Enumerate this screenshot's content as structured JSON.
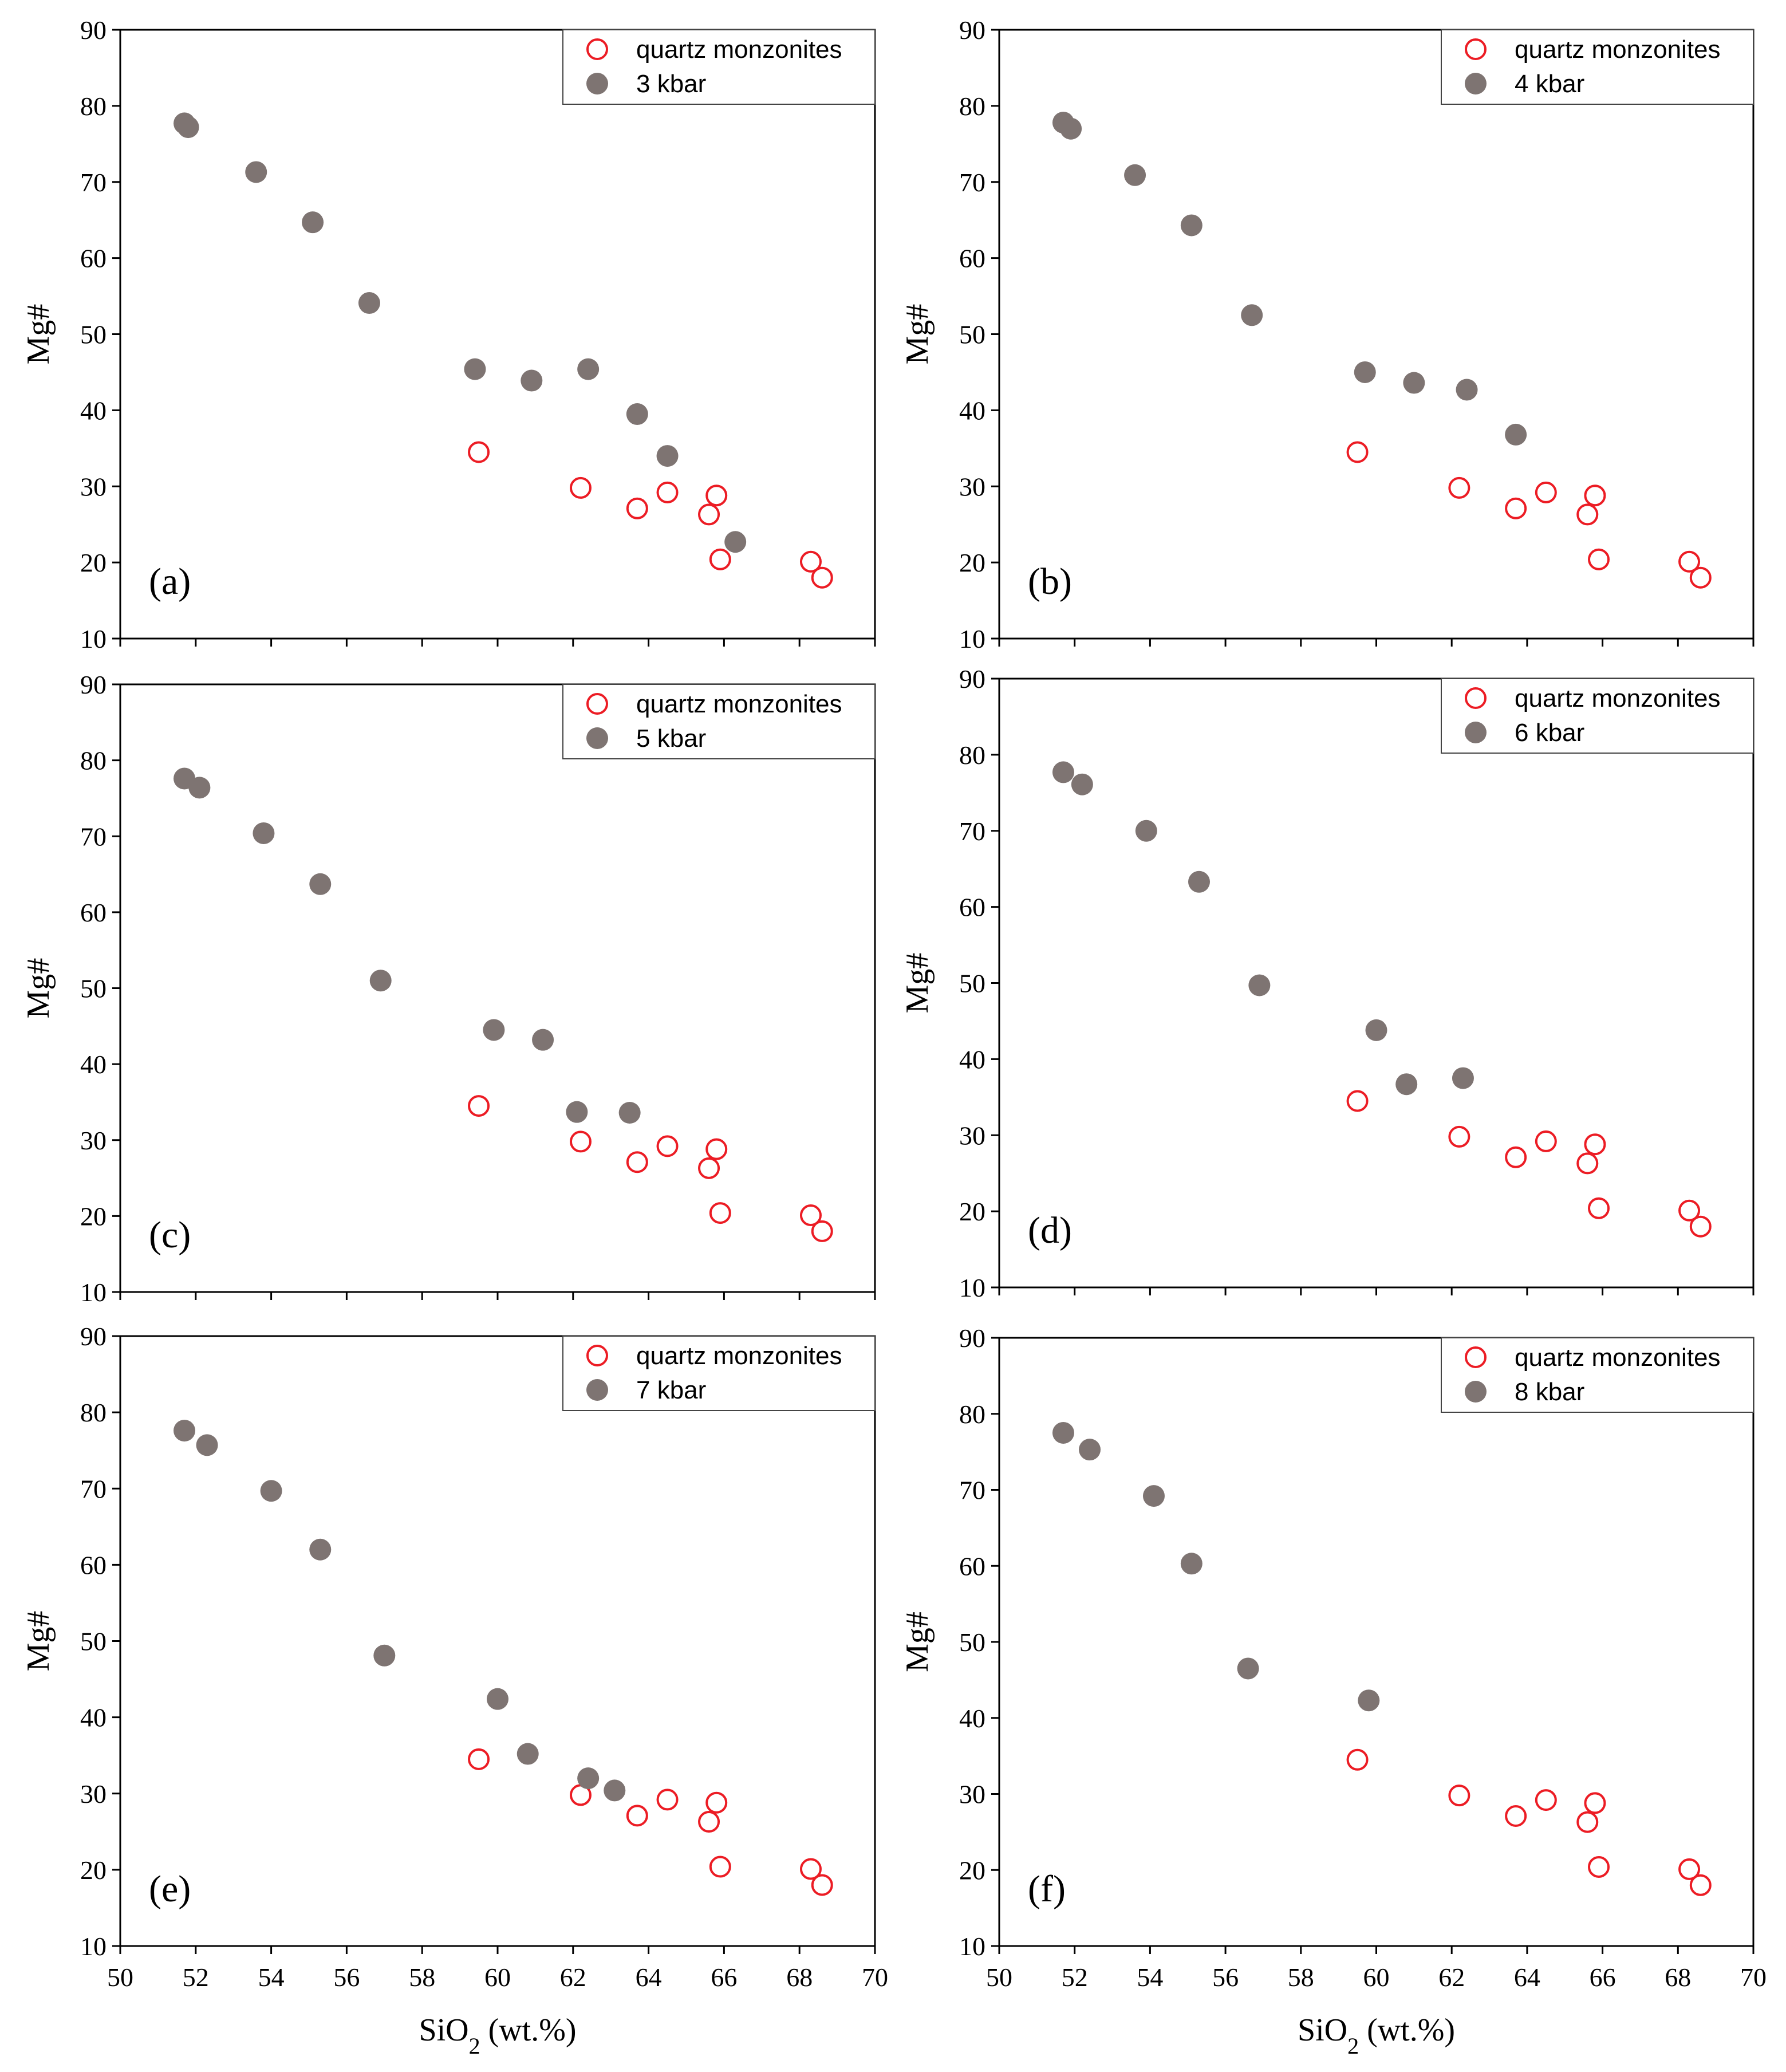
{
  "colors": {
    "quartz": "#ec1c24",
    "experiment": "#7e7472",
    "axis": "#000000"
  },
  "chart_data": [
    {
      "type": "scatter",
      "panel": "(a)",
      "xlabel": "SiO2 (wt.%)",
      "ylabel": "Mg#",
      "xlim": [
        50,
        70
      ],
      "ylim": [
        10,
        90
      ],
      "xtick_labels_shown": false,
      "series": [
        {
          "name": "quartz monzonites",
          "marker": "open-circle",
          "points": [
            [
              59.5,
              34.5
            ],
            [
              62.2,
              29.8
            ],
            [
              63.7,
              27.1
            ],
            [
              64.5,
              29.2
            ],
            [
              65.6,
              26.3
            ],
            [
              65.8,
              28.8
            ],
            [
              65.9,
              20.4
            ],
            [
              68.3,
              20.1
            ],
            [
              68.6,
              18.0
            ]
          ]
        },
        {
          "name": "3 kbar",
          "marker": "filled-circle",
          "points": [
            [
              51.7,
              77.7
            ],
            [
              51.8,
              77.2
            ],
            [
              53.6,
              71.3
            ],
            [
              55.1,
              64.7
            ],
            [
              56.6,
              54.1
            ],
            [
              59.4,
              45.4
            ],
            [
              60.9,
              43.9
            ],
            [
              62.4,
              45.4
            ],
            [
              63.7,
              39.5
            ],
            [
              64.5,
              34.0
            ],
            [
              66.3,
              22.7
            ]
          ]
        }
      ]
    },
    {
      "type": "scatter",
      "panel": "(b)",
      "xlabel": "SiO2 (wt.%)",
      "ylabel": "Mg#",
      "xlim": [
        50,
        70
      ],
      "ylim": [
        10,
        90
      ],
      "xtick_labels_shown": false,
      "series": [
        {
          "name": "quartz monzonites",
          "marker": "open-circle",
          "points": [
            [
              59.5,
              34.5
            ],
            [
              62.2,
              29.8
            ],
            [
              63.7,
              27.1
            ],
            [
              64.5,
              29.2
            ],
            [
              65.6,
              26.3
            ],
            [
              65.8,
              28.8
            ],
            [
              65.9,
              20.4
            ],
            [
              68.3,
              20.1
            ],
            [
              68.6,
              18.0
            ]
          ]
        },
        {
          "name": "4 kbar",
          "marker": "filled-circle",
          "points": [
            [
              51.7,
              77.8
            ],
            [
              51.9,
              77.0
            ],
            [
              53.6,
              70.9
            ],
            [
              55.1,
              64.3
            ],
            [
              56.7,
              52.5
            ],
            [
              59.7,
              45.0
            ],
            [
              61.0,
              43.6
            ],
            [
              62.4,
              42.7
            ],
            [
              63.7,
              36.8
            ]
          ]
        }
      ]
    },
    {
      "type": "scatter",
      "panel": "(c)",
      "xlabel": "SiO2 (wt.%)",
      "ylabel": "Mg#",
      "xlim": [
        50,
        70
      ],
      "ylim": [
        10,
        90
      ],
      "xtick_labels_shown": false,
      "series": [
        {
          "name": "quartz monzonites",
          "marker": "open-circle",
          "points": [
            [
              59.5,
              34.5
            ],
            [
              62.2,
              29.8
            ],
            [
              63.7,
              27.1
            ],
            [
              64.5,
              29.2
            ],
            [
              65.6,
              26.3
            ],
            [
              65.8,
              28.8
            ],
            [
              65.9,
              20.4
            ],
            [
              68.3,
              20.1
            ],
            [
              68.6,
              18.0
            ]
          ]
        },
        {
          "name": "5 kbar",
          "marker": "filled-circle",
          "points": [
            [
              51.7,
              77.6
            ],
            [
              52.1,
              76.4
            ],
            [
              53.8,
              70.4
            ],
            [
              55.3,
              63.7
            ],
            [
              56.9,
              51.0
            ],
            [
              59.9,
              44.5
            ],
            [
              61.2,
              43.2
            ],
            [
              62.1,
              33.7
            ],
            [
              63.5,
              33.6
            ]
          ]
        }
      ]
    },
    {
      "type": "scatter",
      "panel": "(d)",
      "xlabel": "SiO2 (wt.%)",
      "ylabel": "Mg#",
      "xlim": [
        50,
        70
      ],
      "ylim": [
        10,
        90
      ],
      "xtick_labels_shown": false,
      "series": [
        {
          "name": "quartz monzonites",
          "marker": "open-circle",
          "points": [
            [
              59.5,
              34.5
            ],
            [
              62.2,
              29.8
            ],
            [
              63.7,
              27.1
            ],
            [
              64.5,
              29.2
            ],
            [
              65.6,
              26.3
            ],
            [
              65.8,
              28.8
            ],
            [
              65.9,
              20.4
            ],
            [
              68.3,
              20.1
            ],
            [
              68.6,
              18.0
            ]
          ]
        },
        {
          "name": "6 kbar",
          "marker": "filled-circle",
          "points": [
            [
              51.7,
              77.7
            ],
            [
              52.2,
              76.1
            ],
            [
              53.9,
              70.0
            ],
            [
              55.3,
              63.3
            ],
            [
              56.9,
              49.7
            ],
            [
              60.0,
              43.8
            ],
            [
              60.8,
              36.7
            ],
            [
              62.3,
              37.5
            ]
          ]
        }
      ]
    },
    {
      "type": "scatter",
      "panel": "(e)",
      "xlabel": "SiO2 (wt.%)",
      "ylabel": "Mg#",
      "xlim": [
        50,
        70
      ],
      "ylim": [
        10,
        90
      ],
      "xtick_labels_shown": true,
      "series": [
        {
          "name": "quartz monzonites",
          "marker": "open-circle",
          "points": [
            [
              59.5,
              34.5
            ],
            [
              62.2,
              29.8
            ],
            [
              63.7,
              27.1
            ],
            [
              64.5,
              29.2
            ],
            [
              65.6,
              26.3
            ],
            [
              65.8,
              28.8
            ],
            [
              65.9,
              20.4
            ],
            [
              68.3,
              20.1
            ],
            [
              68.6,
              18.0
            ]
          ]
        },
        {
          "name": "7 kbar",
          "marker": "filled-circle",
          "points": [
            [
              51.7,
              77.6
            ],
            [
              52.3,
              75.7
            ],
            [
              54.0,
              69.7
            ],
            [
              55.3,
              62.0
            ],
            [
              57.0,
              48.1
            ],
            [
              60.0,
              42.4
            ],
            [
              60.8,
              35.2
            ],
            [
              62.4,
              32.0
            ],
            [
              63.1,
              30.4
            ]
          ]
        }
      ]
    },
    {
      "type": "scatter",
      "panel": "(f)",
      "xlabel": "SiO2 (wt.%)",
      "ylabel": "Mg#",
      "xlim": [
        50,
        70
      ],
      "ylim": [
        10,
        90
      ],
      "xtick_labels_shown": true,
      "series": [
        {
          "name": "quartz monzonites",
          "marker": "open-circle",
          "points": [
            [
              59.5,
              34.5
            ],
            [
              62.2,
              29.8
            ],
            [
              63.7,
              27.1
            ],
            [
              64.5,
              29.2
            ],
            [
              65.6,
              26.3
            ],
            [
              65.8,
              28.8
            ],
            [
              65.9,
              20.4
            ],
            [
              68.3,
              20.1
            ],
            [
              68.6,
              18.0
            ]
          ]
        },
        {
          "name": "8 kbar",
          "marker": "filled-circle",
          "points": [
            [
              51.7,
              77.5
            ],
            [
              52.4,
              75.3
            ],
            [
              54.1,
              69.2
            ],
            [
              55.1,
              60.3
            ],
            [
              56.6,
              46.5
            ],
            [
              59.8,
              42.3
            ]
          ]
        }
      ]
    }
  ]
}
